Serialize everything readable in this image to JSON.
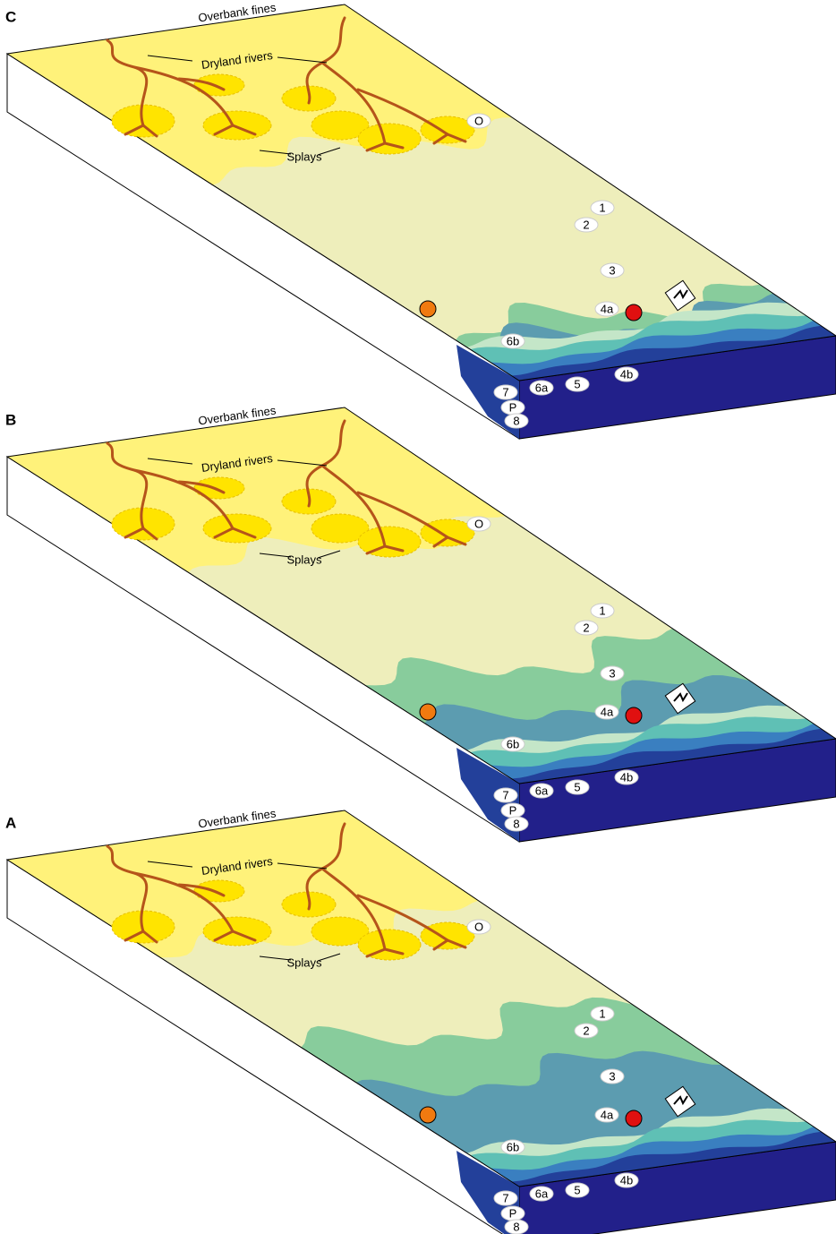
{
  "panels": [
    {
      "label": "C",
      "overbank": "Overbank fines",
      "rivers": "Dryland rivers",
      "splays": "Splays",
      "markers": [
        "O",
        "1",
        "2",
        "3",
        "4a",
        "6b",
        "4b",
        "5",
        "6a",
        "7",
        "P",
        "8"
      ]
    },
    {
      "label": "B",
      "overbank": "Overbank fines",
      "rivers": "Dryland rivers",
      "splays": "Splays",
      "markers": [
        "O",
        "1",
        "2",
        "3",
        "4a",
        "6b",
        "4b",
        "5",
        "6a",
        "7",
        "P",
        "8"
      ]
    },
    {
      "label": "A",
      "overbank": "Overbank fines",
      "rivers": "Dryland rivers",
      "splays": "Splays",
      "markers": [
        "O",
        "1",
        "2",
        "3",
        "4a",
        "6b",
        "4b",
        "5",
        "6a",
        "7",
        "P",
        "8"
      ]
    }
  ]
}
